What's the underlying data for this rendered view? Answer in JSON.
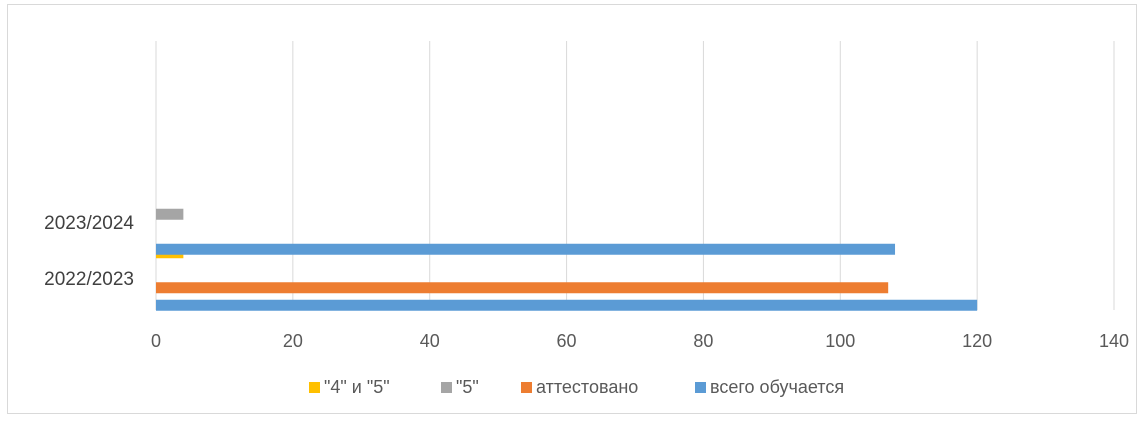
{
  "chart_data": {
    "type": "bar",
    "orientation": "horizontal",
    "title": "",
    "xlabel": "",
    "ylabel": "",
    "categories": [
      "2022/2023",
      "2023/2024"
    ],
    "series": [
      {
        "name": "всего обучается",
        "color": "#5b9bd5",
        "values": [
          120,
          108
        ]
      },
      {
        "name": "аттестовано",
        "color": "#ed7d31",
        "values": [
          107,
          null
        ]
      },
      {
        "name": "\"5\"",
        "color": "#a5a5a5",
        "values": [
          null,
          4
        ]
      },
      {
        "name": "\"4\" и \"5\"",
        "color": "#ffc000",
        "values": [
          4,
          null
        ]
      }
    ],
    "xlim": [
      0,
      140
    ],
    "xticks": [
      "0",
      "20",
      "40",
      "60",
      "80",
      "100",
      "120",
      "140"
    ],
    "grid": true,
    "legend_position": "bottom",
    "legend_order": [
      "\"4\" и \"5\"",
      "\"5\"",
      "аттестовано",
      "всего обучается"
    ]
  }
}
